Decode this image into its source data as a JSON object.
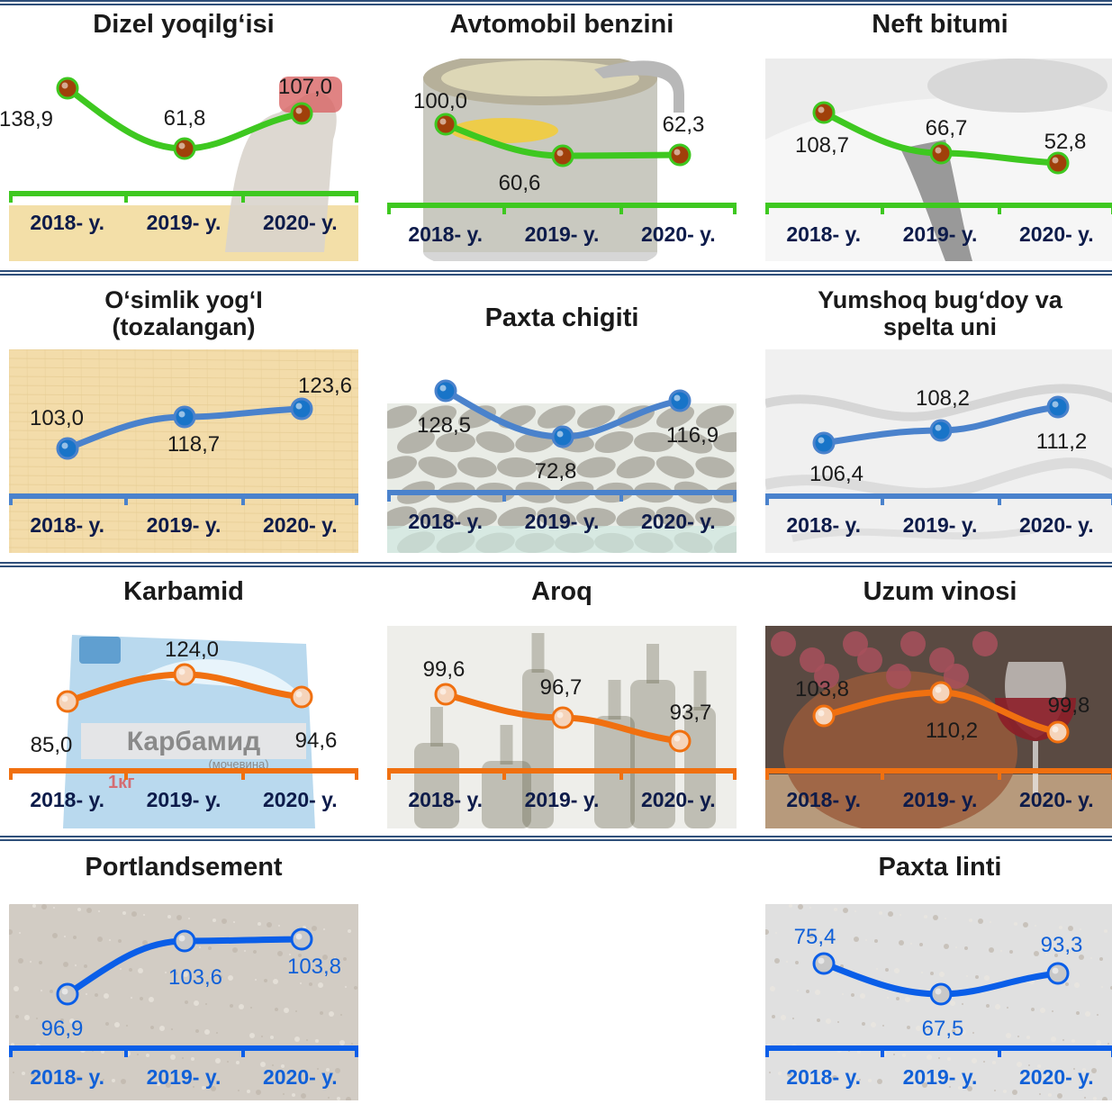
{
  "chart_data": [
    {
      "type": "line",
      "title": "Dizel yoqilg‘isi",
      "categories": [
        "2018- y.",
        "2019- y.",
        "2020- y."
      ],
      "values": [
        138.9,
        61.8,
        107.0
      ],
      "labels": [
        "138,9",
        "61,8",
        "107,0"
      ],
      "color": "#3ec820",
      "marker": "#a0400a",
      "year_color": "#0d1b4a"
    },
    {
      "type": "line",
      "title": "Avtomobil benzini",
      "categories": [
        "2018- y.",
        "2019- y.",
        "2020- y."
      ],
      "values": [
        100.0,
        60.6,
        62.3
      ],
      "labels": [
        "100,0",
        "60,6",
        "62,3"
      ],
      "color": "#3ec820",
      "marker": "#a0400a",
      "year_color": "#0d1b4a"
    },
    {
      "type": "line",
      "title": "Neft bitumi",
      "categories": [
        "2018- y.",
        "2019- y.",
        "2020- y."
      ],
      "values": [
        108.7,
        66.7,
        52.8
      ],
      "labels": [
        "108,7",
        "66,7",
        "52,8"
      ],
      "color": "#3ec820",
      "marker": "#a0400a",
      "year_color": "#0d1b4a"
    },
    {
      "type": "line",
      "title": "O‘simlik yog‘I (tozalangan)",
      "categories": [
        "2018- y.",
        "2019- y.",
        "2020- y."
      ],
      "values": [
        103.0,
        118.7,
        123.6
      ],
      "labels": [
        "103,0",
        "118,7",
        "123,6"
      ],
      "color": "#4a82cc",
      "marker": "#1874c8",
      "year_color": "#0d1b4a"
    },
    {
      "type": "line",
      "title": "Paxta chigiti",
      "categories": [
        "2018- y.",
        "2019- y.",
        "2020- y."
      ],
      "values": [
        128.5,
        72.8,
        116.9
      ],
      "labels": [
        "128,5",
        "72,8",
        "116,9"
      ],
      "color": "#4a82cc",
      "marker": "#1874c8",
      "year_color": "#0d1b4a"
    },
    {
      "type": "line",
      "title": "Yumshoq bug‘doy va spelta uni",
      "categories": [
        "2018- y.",
        "2019- y.",
        "2020- y."
      ],
      "values": [
        106.4,
        108.2,
        111.2
      ],
      "labels": [
        "106,4",
        "108,2",
        "111,2"
      ],
      "color": "#4a82cc",
      "marker": "#1874c8",
      "year_color": "#0d1b4a"
    },
    {
      "type": "line",
      "title": "Karbamid",
      "categories": [
        "2018- y.",
        "2019- y.",
        "2020- y."
      ],
      "values": [
        85.0,
        124.0,
        94.6
      ],
      "labels": [
        "85,0",
        "124,0",
        "94,6"
      ],
      "color": "#f07010",
      "marker": "#f5d4bb",
      "year_color": "#0d1b4a"
    },
    {
      "type": "line",
      "title": "Aroq",
      "categories": [
        "2018- y.",
        "2019- y.",
        "2020- y."
      ],
      "values": [
        99.6,
        96.7,
        93.7
      ],
      "labels": [
        "99,6",
        "96,7",
        "93,7"
      ],
      "color": "#f07010",
      "marker": "#f5d4bb",
      "year_color": "#0d1b4a"
    },
    {
      "type": "line",
      "title": "Uzum vinosi",
      "categories": [
        "2018- y.",
        "2019- y.",
        "2020- y."
      ],
      "values": [
        103.8,
        110.2,
        99.8
      ],
      "labels": [
        "103,8",
        "110,2",
        "99,8"
      ],
      "color": "#f07010",
      "marker": "#f5d4bb",
      "year_color": "#0d1b4a"
    },
    {
      "type": "line",
      "title": "Portlandsement",
      "categories": [
        "2018- y.",
        "2019- y.",
        "2020- y."
      ],
      "values": [
        96.9,
        103.6,
        103.8
      ],
      "labels": [
        "96,9",
        "103,6",
        "103,8"
      ],
      "color": "#0a5ee8",
      "marker": "#c8c8c8",
      "year_color": "#1060d8"
    },
    {
      "type": "line",
      "title": "Paxta linti",
      "categories": [
        "2018- y.",
        "2019- y.",
        "2020- y."
      ],
      "values": [
        75.4,
        67.5,
        93.3
      ],
      "labels": [
        "75,4",
        "67,5",
        "93,3"
      ],
      "color": "#0a5ee8",
      "marker": "#c8c8c8",
      "year_color": "#1060d8"
    }
  ]
}
